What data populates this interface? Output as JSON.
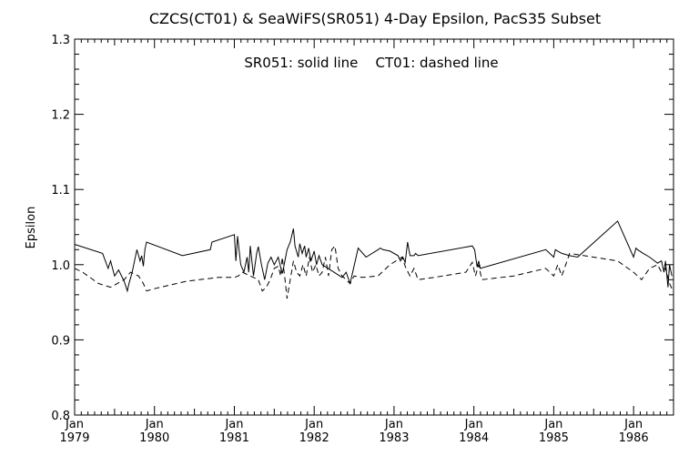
{
  "chart_data": {
    "type": "line",
    "title": "CZCS(CT01) & SeaWiFS(SR051) 4-Day Epsilon, PacS35 Subset",
    "annotation": "SR051: solid line    CT01: dashed line",
    "xlabel": "",
    "ylabel": "Epsilon",
    "xlim": [
      1979.0,
      1986.5
    ],
    "ylim": [
      0.8,
      1.3
    ],
    "yticks": [
      "0.8",
      "0.9",
      "1.0",
      "1.1",
      "1.2",
      "1.3"
    ],
    "xticks": [
      {
        "value": 1979,
        "label": "Jan",
        "year": "1979"
      },
      {
        "value": 1980,
        "label": "Jan",
        "year": "1980"
      },
      {
        "value": 1981,
        "label": "Jan",
        "year": "1981"
      },
      {
        "value": 1982,
        "label": "Jan",
        "year": "1982"
      },
      {
        "value": 1983,
        "label": "Jan",
        "year": "1983"
      },
      {
        "value": 1984,
        "label": "Jan",
        "year": "1984"
      },
      {
        "value": 1985,
        "label": "Jan",
        "year": "1985"
      },
      {
        "value": 1986,
        "label": "Jan",
        "year": "1986"
      }
    ],
    "grid": false,
    "series": [
      {
        "name": "SR051",
        "style": "solid",
        "x": [
          1979.0,
          1979.35,
          1979.42,
          1979.45,
          1979.5,
          1979.55,
          1979.62,
          1979.66,
          1979.68,
          1979.7,
          1979.72,
          1979.75,
          1979.78,
          1979.82,
          1979.84,
          1979.86,
          1979.88,
          1979.9,
          1980.35,
          1980.7,
          1980.72,
          1981.0,
          1981.02,
          1981.04,
          1981.08,
          1981.12,
          1981.16,
          1981.18,
          1981.2,
          1981.24,
          1981.28,
          1981.3,
          1981.34,
          1981.38,
          1981.42,
          1981.46,
          1981.5,
          1981.55,
          1981.6,
          1981.62,
          1981.66,
          1981.7,
          1981.74,
          1981.76,
          1981.8,
          1981.82,
          1981.85,
          1981.88,
          1981.9,
          1981.93,
          1981.96,
          1982.0,
          1982.03,
          1982.06,
          1982.1,
          1982.35,
          1982.4,
          1982.45,
          1982.55,
          1982.65,
          1982.8,
          1982.83,
          1982.86,
          1982.95,
          1983.05,
          1983.08,
          1983.11,
          1983.14,
          1983.17,
          1983.2,
          1983.25,
          1983.27,
          1983.3,
          1983.98,
          1984.01,
          1984.04,
          1984.06,
          1984.08,
          1984.9,
          1985.0,
          1985.02,
          1985.05,
          1985.1,
          1985.2,
          1985.3,
          1985.8,
          1986.0,
          1986.03,
          1986.05,
          1986.12,
          1986.2,
          1986.3,
          1986.35,
          1986.38,
          1986.4,
          1986.43,
          1986.45,
          1986.48
        ],
        "y": [
          1.027,
          1.015,
          0.995,
          1.005,
          0.985,
          0.993,
          0.978,
          0.965,
          0.975,
          0.982,
          0.99,
          1.005,
          1.02,
          1.005,
          1.012,
          0.998,
          1.02,
          1.03,
          1.012,
          1.02,
          1.03,
          1.04,
          1.005,
          1.038,
          1.0,
          0.99,
          1.01,
          0.99,
          1.025,
          0.985,
          1.015,
          1.024,
          1.0,
          0.98,
          1.002,
          1.01,
          1.0,
          1.01,
          0.988,
          0.998,
          1.02,
          1.03,
          1.048,
          1.025,
          1.01,
          1.028,
          1.015,
          1.025,
          1.01,
          1.022,
          1.005,
          1.018,
          1.0,
          1.012,
          1.0,
          0.983,
          0.99,
          0.975,
          1.022,
          1.01,
          1.02,
          1.022,
          1.02,
          1.018,
          1.012,
          1.005,
          1.01,
          1.003,
          1.03,
          1.012,
          1.012,
          1.015,
          1.012,
          1.025,
          1.02,
          0.997,
          1.005,
          0.995,
          1.02,
          1.01,
          1.02,
          1.018,
          1.015,
          1.012,
          1.01,
          1.058,
          1.01,
          1.022,
          1.02,
          1.015,
          1.01,
          1.002,
          1.005,
          0.99,
          1.005,
          0.97,
          1.0,
          0.985
        ],
        "breaks": []
      },
      {
        "name": "CT01",
        "style": "dashed",
        "x": [
          1979.0,
          1979.1,
          1979.3,
          1979.45,
          1979.62,
          1979.7,
          1979.8,
          1979.86,
          1979.9,
          1980.0,
          1980.4,
          1980.8,
          1981.0,
          1981.05,
          1981.1,
          1981.2,
          1981.3,
          1981.35,
          1981.4,
          1981.45,
          1981.5,
          1981.55,
          1981.58,
          1981.6,
          1981.63,
          1981.66,
          1981.7,
          1981.74,
          1981.78,
          1981.82,
          1981.86,
          1981.9,
          1981.94,
          1981.98,
          1982.02,
          1982.06,
          1982.1,
          1982.14,
          1982.18,
          1982.22,
          1982.26,
          1982.3,
          1982.35,
          1982.4,
          1982.45,
          1982.5,
          1982.6,
          1982.8,
          1982.95,
          1983.1,
          1983.15,
          1983.2,
          1983.25,
          1983.3,
          1983.5,
          1983.9,
          1983.98,
          1984.02,
          1984.06,
          1984.1,
          1984.5,
          1984.9,
          1984.95,
          1985.0,
          1985.05,
          1985.1,
          1985.15,
          1985.2,
          1985.8,
          1986.0,
          1986.05,
          1986.1,
          1986.2,
          1986.3,
          1986.35,
          1986.4,
          1986.45,
          1986.48
        ],
        "y": [
          0.995,
          0.99,
          0.975,
          0.97,
          0.98,
          0.99,
          0.985,
          0.975,
          0.965,
          0.968,
          0.978,
          0.983,
          0.983,
          0.985,
          0.99,
          0.985,
          0.98,
          0.965,
          0.97,
          0.98,
          0.995,
          0.998,
          0.985,
          1.01,
          0.985,
          0.955,
          0.98,
          1.005,
          0.99,
          0.985,
          1.0,
          0.985,
          1.01,
          0.99,
          1.0,
          0.985,
          0.99,
          1.01,
          0.985,
          1.02,
          1.025,
          0.995,
          0.985,
          0.98,
          0.975,
          0.985,
          0.983,
          0.985,
          1.0,
          1.01,
          0.995,
          0.985,
          0.995,
          0.98,
          0.983,
          0.99,
          1.003,
          0.985,
          1.0,
          0.98,
          0.985,
          0.995,
          0.99,
          0.985,
          1.0,
          0.985,
          1.0,
          1.015,
          1.005,
          0.99,
          0.985,
          0.98,
          0.995,
          1.0,
          0.99,
          0.995,
          0.975,
          0.968
        ],
        "breaks": []
      }
    ]
  }
}
